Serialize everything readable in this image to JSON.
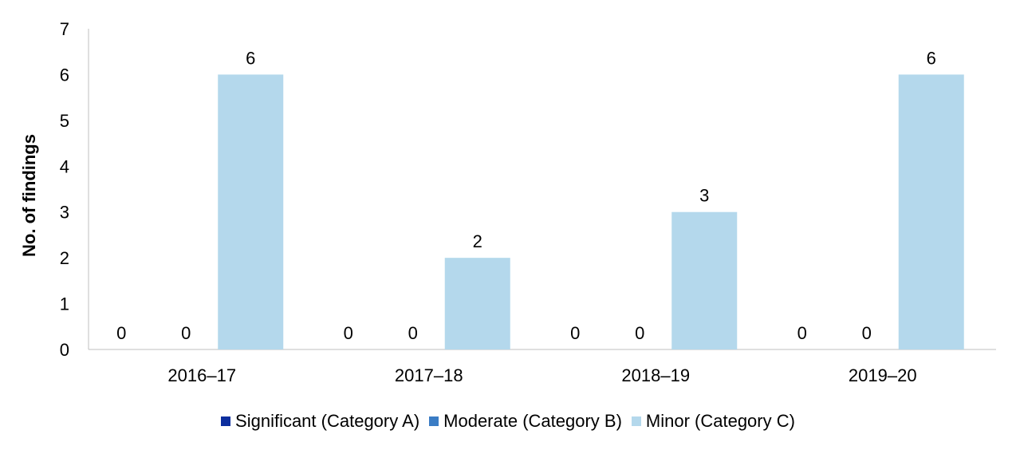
{
  "chart_data": {
    "type": "bar",
    "title": "",
    "xlabel": "",
    "ylabel": "No. of findings",
    "ylim": [
      0,
      7
    ],
    "yticks": [
      0,
      1,
      2,
      3,
      4,
      5,
      6,
      7
    ],
    "grid": false,
    "legend_position": "bottom",
    "categories": [
      "2016–17",
      "2017–18",
      "2018–19",
      "2019–20"
    ],
    "series": [
      {
        "name": "Significant (Category A)",
        "color": "#0c2e9e",
        "values": [
          0,
          0,
          0,
          0
        ]
      },
      {
        "name": "Moderate (Category B)",
        "color": "#3a7cc4",
        "values": [
          0,
          0,
          0,
          0
        ]
      },
      {
        "name": "Minor (Category C)",
        "color": "#b4d8ec",
        "values": [
          6,
          2,
          3,
          6
        ]
      }
    ]
  }
}
